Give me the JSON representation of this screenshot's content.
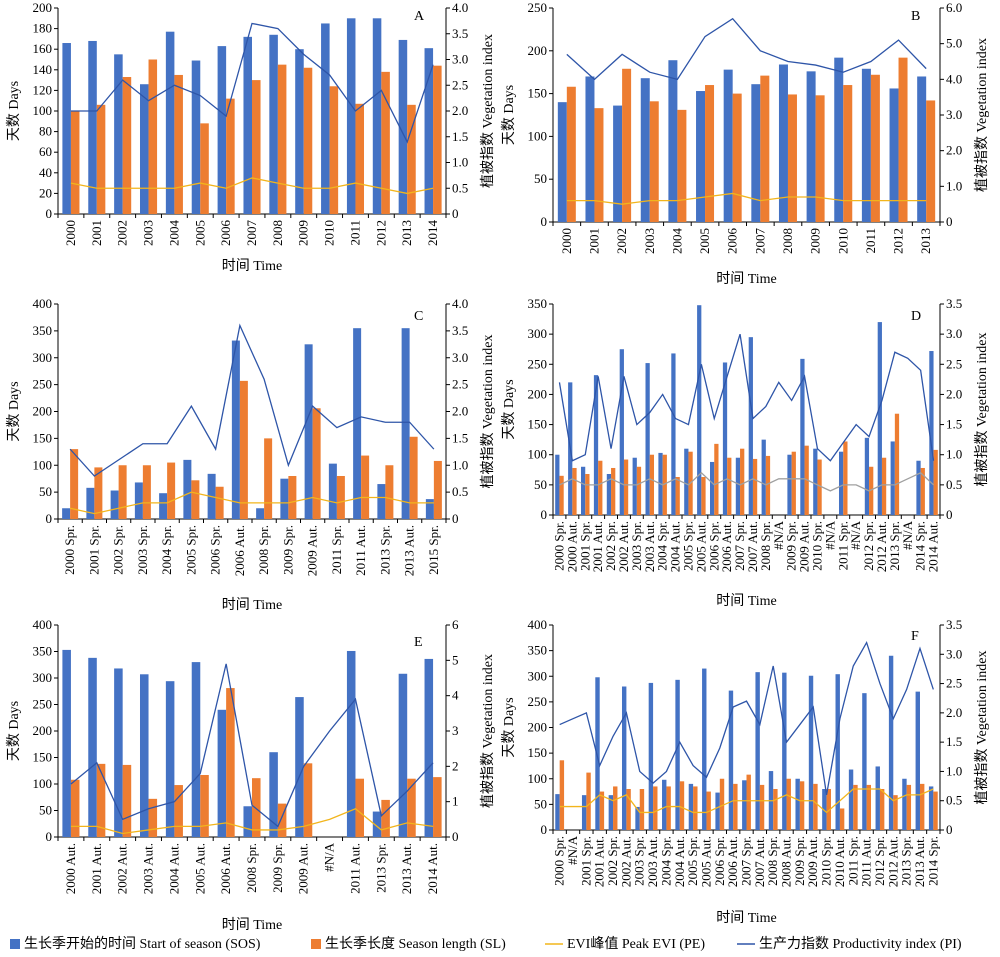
{
  "colors": {
    "sos": "#4472c4",
    "sl": "#ed7d31",
    "pe": "#f2b51c",
    "pi": "#2e55a8",
    "pe_d": "#a0a0a0"
  },
  "legend": [
    {
      "key": "sos",
      "kind": "bar",
      "label": "生长季开始的时间 Start of season (SOS)"
    },
    {
      "key": "sl",
      "kind": "bar",
      "label": "生长季长度 Season length (SL)"
    },
    {
      "key": "pe",
      "kind": "line",
      "label": "EVI峰值 Peak EVI (PE)"
    },
    {
      "key": "pi",
      "kind": "line",
      "label": "生产力指数 Productivity index (PI)"
    }
  ],
  "chart_data": [
    {
      "panel": "A",
      "type": "bar",
      "xlabel": "时间 Time",
      "ylabel": "天数 Days",
      "y2label": "植被指数 Vegetation index",
      "ylim": [
        0,
        200
      ],
      "yticks": [
        0,
        20,
        40,
        60,
        80,
        100,
        120,
        140,
        160,
        180,
        200
      ],
      "y2lim": [
        0,
        4
      ],
      "y2ticks": [
        "0",
        "0.5",
        "1.0",
        "1.5",
        "2.0",
        "2.5",
        "3.0",
        "3.5",
        "4.0"
      ],
      "categories": [
        "2000",
        "2001",
        "2002",
        "2003",
        "2004",
        "2005",
        "2006",
        "2007",
        "2008",
        "2009",
        "2010",
        "2011",
        "2012",
        "2013",
        "2014"
      ],
      "series": [
        {
          "name": "生长季开始的时间 Start of season (SOS)",
          "key": "sos",
          "axis": "left",
          "kind": "bar",
          "values": [
            166,
            168,
            155,
            126,
            177,
            149,
            163,
            172,
            174,
            160,
            185,
            190,
            190,
            169,
            161
          ]
        },
        {
          "name": "生长季长度 Season length (SL)",
          "key": "sl",
          "axis": "left",
          "kind": "bar",
          "values": [
            100,
            106,
            133,
            150,
            135,
            88,
            112,
            130,
            145,
            142,
            124,
            107,
            138,
            106,
            144
          ]
        },
        {
          "name": "EVI峰值 Peak EVI (PE)",
          "key": "pe",
          "axis": "right",
          "kind": "line",
          "values": [
            0.6,
            0.5,
            0.5,
            0.5,
            0.5,
            0.6,
            0.5,
            0.7,
            0.6,
            0.5,
            0.5,
            0.6,
            0.5,
            0.4,
            0.5
          ]
        },
        {
          "name": "生产力指数 Productivity index (PI)",
          "key": "pi",
          "axis": "right",
          "kind": "line",
          "values": [
            2.0,
            2.0,
            2.6,
            2.2,
            2.5,
            2.3,
            1.9,
            3.7,
            3.6,
            3.1,
            2.7,
            2.0,
            2.4,
            1.4,
            2.9
          ]
        }
      ]
    },
    {
      "panel": "B",
      "type": "bar",
      "xlabel": "时间 Time",
      "ylabel": "天数 Days",
      "y2label": "植被指数 Vegetation index",
      "ylim": [
        0,
        250
      ],
      "yticks": [
        0,
        50,
        100,
        150,
        200,
        250
      ],
      "y2lim": [
        0,
        6
      ],
      "y2ticks": [
        "0",
        "1.0",
        "2.0",
        "3.0",
        "4.0",
        "5.0",
        "6.0"
      ],
      "categories": [
        "2000",
        "2001",
        "2002",
        "2003",
        "2004",
        "2005",
        "2006",
        "2007",
        "2008",
        "2009",
        "2010",
        "2011",
        "2012",
        "2013"
      ],
      "series": [
        {
          "name": "生长季开始的时间 Start of season (SOS)",
          "key": "sos",
          "axis": "left",
          "kind": "bar",
          "values": [
            140,
            170,
            136,
            168,
            189,
            153,
            178,
            161,
            184,
            176,
            192,
            179,
            156,
            170
          ]
        },
        {
          "name": "生长季长度 Season length (SL)",
          "key": "sl",
          "axis": "left",
          "kind": "bar",
          "values": [
            158,
            133,
            179,
            141,
            131,
            160,
            150,
            171,
            149,
            148,
            160,
            172,
            192,
            142
          ]
        },
        {
          "name": "EVI峰值 Peak EVI (PE)",
          "key": "pe",
          "axis": "right",
          "kind": "line",
          "values": [
            0.6,
            0.6,
            0.5,
            0.6,
            0.6,
            0.7,
            0.8,
            0.6,
            0.7,
            0.7,
            0.6,
            0.6,
            0.6,
            0.6
          ]
        },
        {
          "name": "生产力指数 Productivity index (PI)",
          "key": "pi",
          "axis": "right",
          "kind": "line",
          "values": [
            4.7,
            4.0,
            4.7,
            4.2,
            4.0,
            5.2,
            5.7,
            4.8,
            4.5,
            4.4,
            4.2,
            4.5,
            5.1,
            4.3
          ]
        }
      ]
    },
    {
      "panel": "C",
      "type": "bar",
      "xlabel": "时间 Time",
      "ylabel": "天数 Days",
      "y2label": "植被指数 Vegetation index",
      "ylim": [
        0,
        400
      ],
      "yticks": [
        0,
        50,
        100,
        150,
        200,
        250,
        300,
        350,
        400
      ],
      "y2lim": [
        0,
        4
      ],
      "y2ticks": [
        "0",
        "0.5",
        "1.0",
        "1.5",
        "2.0",
        "2.5",
        "3.0",
        "3.5",
        "4.0"
      ],
      "categories": [
        "2000 Spr.",
        "2001 Spr.",
        "2002 Spr.",
        "2003 Spr.",
        "2004 Spr.",
        "2005 Spr.",
        "2006 Spr.",
        "2006 Aut.",
        "2008 Spr.",
        "2009 Spr.",
        "2009 Aut.",
        "2011 Spr.",
        "2011 Aut.",
        "2013 Spr.",
        "2013 Aut.",
        "2015 Spr."
      ],
      "series": [
        {
          "name": "生长季开始的时间 Start of season (SOS)",
          "key": "sos",
          "axis": "left",
          "kind": "bar",
          "values": [
            20,
            58,
            53,
            68,
            48,
            110,
            84,
            332,
            20,
            75,
            325,
            103,
            355,
            65,
            355,
            37
          ]
        },
        {
          "name": "生长季长度 Season length (SL)",
          "key": "sl",
          "axis": "left",
          "kind": "bar",
          "values": [
            130,
            96,
            100,
            100,
            105,
            72,
            60,
            257,
            150,
            80,
            206,
            80,
            118,
            100,
            153,
            108
          ]
        },
        {
          "name": "EVI峰值 Peak EVI (PE)",
          "key": "pe",
          "axis": "right",
          "kind": "line",
          "values": [
            0.2,
            0.1,
            0.2,
            0.3,
            0.3,
            0.5,
            0.4,
            0.3,
            0.3,
            0.3,
            0.4,
            0.3,
            0.4,
            0.4,
            0.3,
            0.3
          ]
        },
        {
          "name": "生产力指数 Productivity index (PI)",
          "key": "pi",
          "axis": "right",
          "kind": "line",
          "values": [
            1.3,
            0.8,
            1.1,
            1.4,
            1.4,
            2.1,
            1.3,
            3.6,
            2.6,
            1.0,
            2.1,
            1.7,
            1.9,
            1.8,
            1.8,
            1.3
          ]
        }
      ]
    },
    {
      "panel": "D",
      "type": "bar",
      "xlabel": "时间 Time",
      "ylabel": "天数 Days",
      "y2label": "植被指数 Vegetation index",
      "ylim": [
        0,
        350
      ],
      "yticks": [
        0,
        50,
        100,
        150,
        200,
        250,
        300,
        350
      ],
      "y2lim": [
        0,
        3.5
      ],
      "y2ticks": [
        "0",
        "0.5",
        "1.0",
        "1.5",
        "2.0",
        "2.5",
        "3.0",
        "3.5"
      ],
      "categories": [
        "2000 Spr.",
        "2000 Aut.",
        "2001 Spr.",
        "2001 Aut.",
        "2002 Spr.",
        "2002 Aut.",
        "2003 Spr.",
        "2003 Aut.",
        "2004 Spr.",
        "2004 Aut.",
        "2005 Spr.",
        "2005 Aut.",
        "2006 Spr.",
        "2006 Aut.",
        "2007 Spr.",
        "2007 Aut.",
        "2008 Spr.",
        "#N/A",
        "2009 Spr.",
        "2009 Aut.",
        "2010 Spr.",
        "#N/A",
        "2011 Spr.",
        "#N/A",
        "2012 Spr.",
        "2012 Aut.",
        "2013 Spr.",
        "#N/A",
        "2014 Spr.",
        "2014 Aut."
      ],
      "series": [
        {
          "name": "生长季开始的时间 Start of season (SOS)",
          "key": "sos",
          "axis": "left",
          "kind": "bar",
          "values": [
            100,
            220,
            80,
            232,
            68,
            275,
            95,
            252,
            103,
            268,
            110,
            348,
            88,
            253,
            95,
            295,
            125,
            null,
            100,
            259,
            110,
            null,
            105,
            null,
            128,
            320,
            122,
            null,
            90,
            272
          ]
        },
        {
          "name": "生长季长度 Season length (SL)",
          "key": "sl",
          "axis": "left",
          "kind": "bar",
          "values": [
            65,
            78,
            68,
            90,
            78,
            92,
            80,
            100,
            100,
            63,
            105,
            63,
            118,
            95,
            110,
            93,
            98,
            null,
            105,
            115,
            92,
            null,
            122,
            null,
            80,
            95,
            168,
            null,
            78,
            108
          ]
        },
        {
          "name": "EVI峰值 Peak EVI (PE)",
          "key": "pe",
          "axis": "right",
          "kind": "line",
          "values": [
            0.5,
            0.6,
            0.5,
            0.5,
            0.6,
            0.5,
            0.5,
            0.6,
            0.5,
            0.6,
            0.5,
            0.7,
            0.5,
            0.6,
            0.5,
            0.6,
            0.5,
            0.6,
            0.6,
            0.6,
            0.5,
            0.4,
            0.5,
            0.5,
            0.4,
            0.5,
            0.5,
            0.6,
            0.7,
            0.5
          ]
        },
        {
          "name": "生产力指数 Productivity index (PI)",
          "key": "pi",
          "axis": "right",
          "kind": "line",
          "values": [
            2.2,
            0.9,
            1.0,
            2.3,
            1.1,
            2.3,
            1.5,
            1.7,
            2.0,
            1.6,
            1.5,
            2.5,
            1.6,
            2.3,
            3.0,
            1.6,
            1.8,
            2.2,
            1.9,
            2.3,
            1.1,
            0.9,
            1.2,
            1.5,
            1.3,
            1.9,
            2.7,
            2.6,
            2.4,
            0.9
          ]
        }
      ]
    },
    {
      "panel": "E",
      "type": "bar",
      "xlabel": "时间 Time",
      "ylabel": "天数 Days",
      "y2label": "植被指数 Vegetation index",
      "ylim": [
        0,
        400
      ],
      "yticks": [
        0,
        50,
        100,
        150,
        200,
        250,
        300,
        350,
        400
      ],
      "y2lim": [
        0,
        6
      ],
      "y2ticks": [
        "0",
        "1",
        "2",
        "3",
        "4",
        "5",
        "6"
      ],
      "categories": [
        "2000 Aut.",
        "2001 Aut.",
        "2002 Aut.",
        "2003 Aut.",
        "2004 Aut.",
        "2005 Aut.",
        "2006 Aut.",
        "2008 Spr.",
        "2009 Spr.",
        "2009 Aut.",
        "#N/A",
        "2011 Aut.",
        "2013 Spr.",
        "2013 Aut.",
        "2014 Aut."
      ],
      "series": [
        {
          "name": "生长季开始的时间 Start of season (SOS)",
          "key": "sos",
          "axis": "left",
          "kind": "bar",
          "values": [
            353,
            338,
            318,
            307,
            294,
            330,
            240,
            58,
            160,
            264,
            null,
            351,
            48,
            308,
            336
          ]
        },
        {
          "name": "生长季长度 Season length (SL)",
          "key": "sl",
          "axis": "left",
          "kind": "bar",
          "values": [
            108,
            138,
            136,
            72,
            98,
            117,
            281,
            111,
            63,
            139,
            null,
            110,
            70,
            110,
            113
          ]
        },
        {
          "name": "EVI峰值 Peak EVI (PE)",
          "key": "pe",
          "axis": "right",
          "kind": "line",
          "values": [
            0.3,
            0.3,
            0.1,
            0.2,
            0.3,
            0.3,
            0.4,
            0.2,
            0.2,
            0.3,
            0.5,
            0.8,
            0.2,
            0.4,
            0.3
          ]
        },
        {
          "name": "生产力指数 Productivity index (PI)",
          "key": "pi",
          "axis": "right",
          "kind": "line",
          "values": [
            1.5,
            2.1,
            0.5,
            0.8,
            1.0,
            1.8,
            4.9,
            0.9,
            0.3,
            2.0,
            3.0,
            3.9,
            0.6,
            1.3,
            2.1
          ]
        }
      ]
    },
    {
      "panel": "F",
      "type": "bar",
      "xlabel": "时间 Time",
      "ylabel": "天数 Days",
      "y2label": "植被指数 Vegetation index",
      "ylim": [
        0,
        400
      ],
      "yticks": [
        0,
        50,
        100,
        150,
        200,
        250,
        300,
        350,
        400
      ],
      "y2lim": [
        0,
        3.5
      ],
      "y2ticks": [
        "0",
        "0.5",
        "1.0",
        "1.5",
        "2.0",
        "2.5",
        "3.0",
        "3.5"
      ],
      "categories": [
        "2000 Spr.",
        "#N/A",
        "2001 Spr.",
        "2001 Aut.",
        "2002 Spr.",
        "2002 Aut.",
        "2003 Spr.",
        "2003 Aut.",
        "2004 Spr.",
        "2004 Aut.",
        "2005 Spr.",
        "2005 Aut.",
        "2006 Spr.",
        "2006 Aut.",
        "2007 Spr.",
        "2007 Aut.",
        "2008 Spr.",
        "2008 Aut.",
        "2009 Spr.",
        "2009 Aut.",
        "2010 Spr.",
        "2010 Aut.",
        "2011 Spr.",
        "2011 Aut.",
        "2012 Spr.",
        "2012 Aut.",
        "2013 Spr.",
        "2013 Aut.",
        "2014 Spr."
      ],
      "series": [
        {
          "name": "生长季开始的时间 Start of season (SOS)",
          "key": "sos",
          "axis": "left",
          "kind": "bar",
          "values": [
            70,
            null,
            68,
            298,
            68,
            280,
            45,
            287,
            98,
            293,
            90,
            315,
            73,
            272,
            97,
            308,
            115,
            307,
            100,
            301,
            80,
            304,
            118,
            267,
            124,
            340,
            100,
            270,
            85
          ]
        },
        {
          "name": "生长季长度 Season length (SL)",
          "key": "sl",
          "axis": "left",
          "kind": "bar",
          "values": [
            136,
            null,
            112,
            75,
            85,
            80,
            80,
            85,
            85,
            95,
            85,
            75,
            100,
            90,
            108,
            88,
            80,
            100,
            95,
            90,
            80,
            42,
            88,
            88,
            80,
            68,
            88,
            90,
            75
          ]
        },
        {
          "name": "EVI峰值 Peak EVI (PE)",
          "key": "pe",
          "axis": "right",
          "kind": "line",
          "values": [
            0.4,
            0.4,
            0.4,
            0.6,
            0.5,
            0.6,
            0.3,
            0.3,
            0.4,
            0.4,
            0.3,
            0.3,
            0.4,
            0.5,
            0.5,
            0.5,
            0.5,
            0.6,
            0.5,
            0.5,
            0.3,
            0.5,
            0.7,
            0.7,
            0.7,
            0.5,
            0.6,
            0.6,
            0.7
          ]
        },
        {
          "name": "生产力指数 Productivity index (PI)",
          "key": "pi",
          "axis": "right",
          "kind": "line",
          "values": [
            1.8,
            1.9,
            2.0,
            1.1,
            1.6,
            2.0,
            1.0,
            0.8,
            1.0,
            1.5,
            1.1,
            0.9,
            1.4,
            2.1,
            2.2,
            1.8,
            2.8,
            1.5,
            1.8,
            2.1,
            0.6,
            1.9,
            2.8,
            3.2,
            2.5,
            1.9,
            2.4,
            3.1,
            2.4
          ]
        }
      ]
    }
  ]
}
